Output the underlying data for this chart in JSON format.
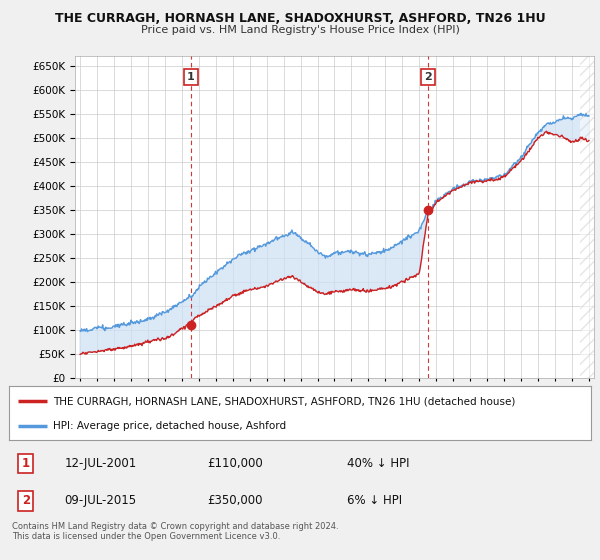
{
  "title": "THE CURRAGH, HORNASH LANE, SHADOXHURST, ASHFORD, TN26 1HU",
  "subtitle": "Price paid vs. HM Land Registry's House Price Index (HPI)",
  "ylim": [
    0,
    670000
  ],
  "yticks": [
    0,
    50000,
    100000,
    150000,
    200000,
    250000,
    300000,
    350000,
    400000,
    450000,
    500000,
    550000,
    600000,
    650000
  ],
  "xlim_start": 1994.7,
  "xlim_end": 2025.3,
  "background_color": "#f0f0f0",
  "plot_bg_color": "#ffffff",
  "fill_color": "#cce0f5",
  "grid_color": "#cccccc",
  "hpi_color": "#5599dd",
  "price_color": "#cc2222",
  "marker1_date": 2001.54,
  "marker1_price": 110000,
  "marker1_label": "1",
  "marker2_date": 2015.52,
  "marker2_price": 350000,
  "marker2_label": "2",
  "legend_line1": "THE CURRAGH, HORNASH LANE, SHADOXHURST, ASHFORD, TN26 1HU (detached house)",
  "legend_line2": "HPI: Average price, detached house, Ashford",
  "footnote": "Contains HM Land Registry data © Crown copyright and database right 2024.\nThis data is licensed under the Open Government Licence v3.0.",
  "table_row1_date": "12-JUL-2001",
  "table_row1_price": "£110,000",
  "table_row1_hpi": "40% ↓ HPI",
  "table_row2_date": "09-JUL-2015",
  "table_row2_price": "£350,000",
  "table_row2_hpi": "6% ↓ HPI"
}
